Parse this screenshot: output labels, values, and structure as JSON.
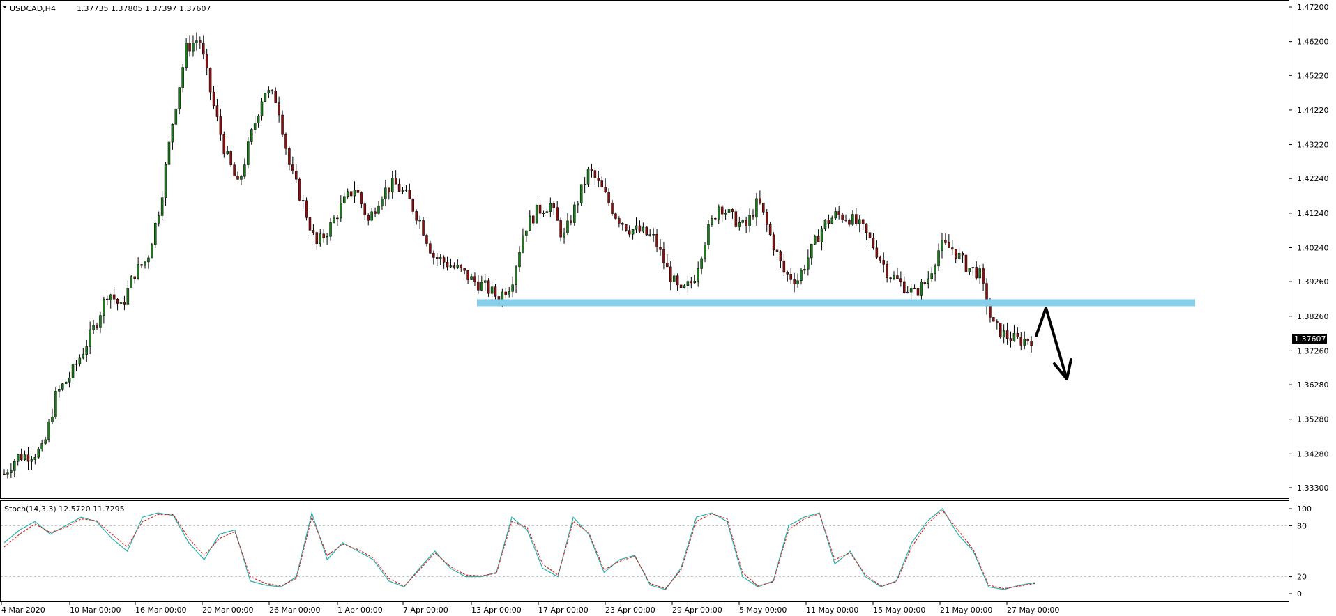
{
  "header": {
    "symbol": "USDCAD,H4",
    "ohlc": "1.37735 1.37805 1.37397 1.37607"
  },
  "price_panel": {
    "y_ticks": [
      "1.47200",
      "1.46200",
      "1.45220",
      "1.44220",
      "1.43220",
      "1.42240",
      "1.41240",
      "1.40240",
      "1.39260",
      "1.38260",
      "1.37260",
      "1.36280",
      "1.35280",
      "1.34280",
      "1.33300"
    ],
    "last_price_label": "1.37607"
  },
  "stoch_panel": {
    "label": "Stoch(14,3,3) 12.5720 11.7295",
    "y_ticks": [
      "100",
      "80",
      "20",
      "0"
    ]
  },
  "x_axis": {
    "ticks": [
      "4 Mar 2020",
      "10 Mar 00:00",
      "16 Mar 00:00",
      "20 Mar 00:00",
      "26 Mar 00:00",
      "1 Apr 00:00",
      "7 Apr 00:00",
      "13 Apr 00:00",
      "17 Apr 00:00",
      "23 Apr 00:00",
      "29 Apr 00:00",
      "5 May 00:00",
      "11 May 00:00",
      "15 May 00:00",
      "21 May 00:00",
      "27 May 00:00"
    ]
  },
  "colors": {
    "bull": "#1e7a1e",
    "bear": "#8b1010",
    "support": "#87ceeb",
    "stoch_main": "#20b2aa",
    "stoch_signal": "#e02020",
    "grid_dash": "#c0c0c0",
    "arrow": "#000000"
  },
  "chart_data": [
    {
      "type": "candlestick",
      "title": "USDCAD,H4",
      "ylim": [
        1.333,
        1.472
      ],
      "x": [
        "4 Mar 2020",
        "10 Mar",
        "16 Mar",
        "20 Mar",
        "26 Mar",
        "1 Apr",
        "7 Apr",
        "13 Apr",
        "17 Apr",
        "23 Apr",
        "29 Apr",
        "5 May",
        "11 May",
        "15 May",
        "21 May",
        "27 May"
      ],
      "close_path": [
        1.337,
        1.342,
        1.3425,
        1.344,
        1.36,
        1.365,
        1.372,
        1.38,
        1.39,
        1.385,
        1.395,
        1.399,
        1.415,
        1.44,
        1.46,
        1.463,
        1.445,
        1.43,
        1.42,
        1.435,
        1.448,
        1.445,
        1.425,
        1.415,
        1.403,
        1.408,
        1.415,
        1.42,
        1.41,
        1.418,
        1.421,
        1.417,
        1.41,
        1.4,
        1.398,
        1.396,
        1.393,
        1.391,
        1.388,
        1.392,
        1.408,
        1.413,
        1.415,
        1.405,
        1.415,
        1.425,
        1.419,
        1.412,
        1.408,
        1.407,
        1.405,
        1.396,
        1.389,
        1.393,
        1.406,
        1.415,
        1.411,
        1.408,
        1.416,
        1.405,
        1.395,
        1.393,
        1.401,
        1.409,
        1.412,
        1.411,
        1.408,
        1.402,
        1.395,
        1.392,
        1.389,
        1.393,
        1.403,
        1.402,
        1.397,
        1.395,
        1.38,
        1.377,
        1.3755,
        1.3761
      ],
      "support_level": 1.3865
    },
    {
      "type": "line",
      "title": "Stoch(14,3,3) 12.5720 11.7295",
      "ylim": [
        0,
        100
      ],
      "levels": [
        80,
        20
      ],
      "series": [
        {
          "name": "main",
          "values": [
            60,
            75,
            85,
            70,
            80,
            90,
            85,
            65,
            50,
            90,
            95,
            92,
            60,
            40,
            70,
            75,
            15,
            10,
            8,
            20,
            95,
            40,
            60,
            50,
            40,
            15,
            8,
            30,
            50,
            30,
            20,
            20,
            25,
            90,
            75,
            30,
            20,
            90,
            70,
            25,
            40,
            45,
            10,
            5,
            30,
            90,
            95,
            85,
            20,
            8,
            15,
            80,
            90,
            95,
            35,
            50,
            20,
            8,
            15,
            60,
            85,
            100,
            70,
            50,
            8,
            5,
            10,
            13
          ]
        },
        {
          "name": "signal",
          "values": [
            55,
            70,
            82,
            72,
            78,
            88,
            86,
            70,
            55,
            85,
            93,
            93,
            65,
            45,
            65,
            73,
            20,
            12,
            9,
            18,
            90,
            45,
            58,
            52,
            42,
            18,
            9,
            28,
            48,
            32,
            22,
            21,
            24,
            85,
            78,
            35,
            22,
            85,
            72,
            28,
            38,
            44,
            12,
            6,
            28,
            85,
            94,
            88,
            25,
            9,
            14,
            75,
            88,
            94,
            40,
            48,
            22,
            9,
            14,
            55,
            82,
            98,
            75,
            52,
            10,
            6,
            9,
            12
          ]
        }
      ]
    }
  ]
}
